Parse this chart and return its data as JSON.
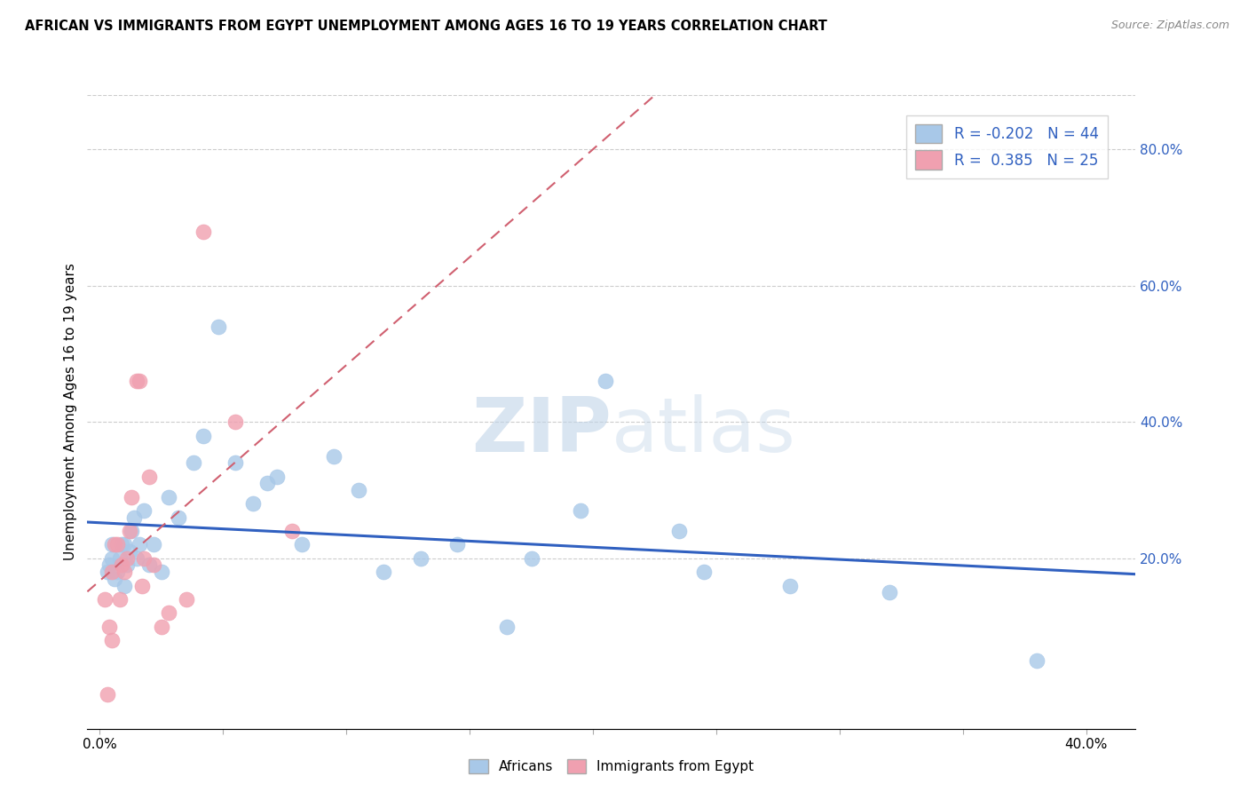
{
  "title": "AFRICAN VS IMMIGRANTS FROM EGYPT UNEMPLOYMENT AMONG AGES 16 TO 19 YEARS CORRELATION CHART",
  "source": "Source: ZipAtlas.com",
  "ylabel": "Unemployment Among Ages 16 to 19 years",
  "xlim": [
    -0.005,
    0.42
  ],
  "ylim": [
    -0.05,
    0.88
  ],
  "x_ticks": [
    0.0,
    0.05,
    0.1,
    0.15,
    0.2,
    0.25,
    0.3,
    0.35,
    0.4
  ],
  "y_ticks_right": [
    0.2,
    0.4,
    0.6,
    0.8
  ],
  "y_tick_labels_right": [
    "20.0%",
    "40.0%",
    "60.0%",
    "80.0%"
  ],
  "legend_R_african": "-0.202",
  "legend_N_african": "44",
  "legend_R_egypt": "0.385",
  "legend_N_egypt": "25",
  "african_color": "#a8c8e8",
  "egypt_color": "#f0a0b0",
  "african_line_color": "#3060c0",
  "egypt_line_color": "#d06070",
  "grid_color": "#cccccc",
  "background_color": "#ffffff",
  "watermark_zip": "ZIP",
  "watermark_atlas": "atlas",
  "african_x": [
    0.003,
    0.004,
    0.005,
    0.005,
    0.006,
    0.007,
    0.008,
    0.009,
    0.01,
    0.01,
    0.011,
    0.012,
    0.013,
    0.014,
    0.015,
    0.016,
    0.018,
    0.02,
    0.022,
    0.025,
    0.028,
    0.032,
    0.038,
    0.042,
    0.048,
    0.055,
    0.062,
    0.068,
    0.072,
    0.082,
    0.095,
    0.105,
    0.115,
    0.13,
    0.145,
    0.165,
    0.175,
    0.195,
    0.205,
    0.235,
    0.245,
    0.28,
    0.32,
    0.38
  ],
  "african_y": [
    0.18,
    0.19,
    0.2,
    0.22,
    0.17,
    0.18,
    0.2,
    0.22,
    0.16,
    0.22,
    0.19,
    0.21,
    0.24,
    0.26,
    0.2,
    0.22,
    0.27,
    0.19,
    0.22,
    0.18,
    0.29,
    0.26,
    0.34,
    0.38,
    0.54,
    0.34,
    0.28,
    0.31,
    0.32,
    0.22,
    0.35,
    0.3,
    0.18,
    0.2,
    0.22,
    0.1,
    0.2,
    0.27,
    0.46,
    0.24,
    0.18,
    0.16,
    0.15,
    0.05
  ],
  "egypt_x": [
    0.002,
    0.003,
    0.004,
    0.005,
    0.005,
    0.006,
    0.007,
    0.008,
    0.009,
    0.01,
    0.011,
    0.012,
    0.013,
    0.015,
    0.016,
    0.017,
    0.018,
    0.02,
    0.022,
    0.025,
    0.028,
    0.035,
    0.042,
    0.055,
    0.078
  ],
  "egypt_y": [
    0.14,
    0.0,
    0.1,
    0.08,
    0.18,
    0.22,
    0.22,
    0.14,
    0.19,
    0.18,
    0.2,
    0.24,
    0.29,
    0.46,
    0.46,
    0.16,
    0.2,
    0.32,
    0.19,
    0.1,
    0.12,
    0.14,
    0.68,
    0.4,
    0.24
  ]
}
